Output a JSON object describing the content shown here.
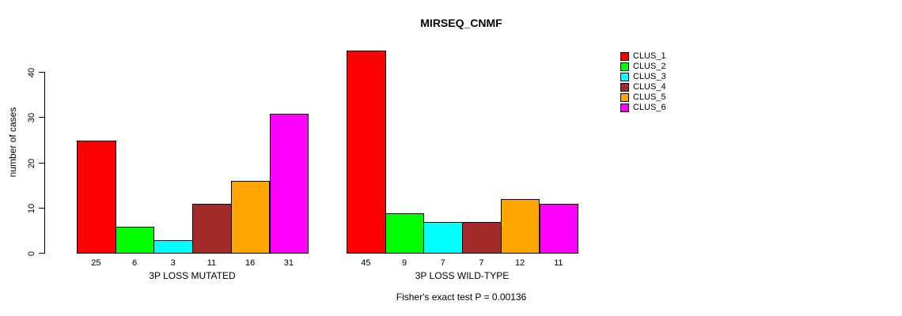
{
  "chart_data": {
    "type": "bar",
    "title": "MIRSEQ_CNMF",
    "ylabel": "number of cases",
    "categories": [
      "CLUS_1",
      "CLUS_2",
      "CLUS_3",
      "CLUS_4",
      "CLUS_5",
      "CLUS_6"
    ],
    "colors": [
      "#FF0000",
      "#00FF00",
      "#00FFFF",
      "#A52A2A",
      "#FFA500",
      "#FF00FF"
    ],
    "groups": [
      {
        "xlabel": "3P LOSS MUTATED",
        "values": [
          25,
          6,
          3,
          11,
          16,
          31
        ]
      },
      {
        "xlabel": "3P LOSS WILD-TYPE",
        "values": [
          45,
          9,
          7,
          7,
          12,
          11
        ]
      }
    ],
    "yticks": [
      0,
      10,
      20,
      30,
      40
    ],
    "ylim": [
      0,
      45
    ],
    "grid": false,
    "legend_position": "right",
    "bar_value_labels_shown": true,
    "annotation": "Fisher's exact test P = 0.00136"
  }
}
